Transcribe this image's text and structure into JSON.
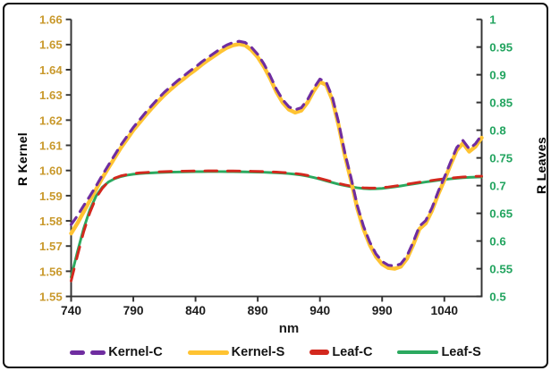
{
  "frame": {
    "background": "#ffffff",
    "border_color": "#0d0d0d"
  },
  "chart_data": {
    "type": "line",
    "title": "",
    "xlabel": "nm",
    "grid": false,
    "legend_position": "bottom",
    "x_range": [
      740,
      1070
    ],
    "x_axis": {
      "label": "nm",
      "color": "#1c1c1c",
      "tick_values": [
        740,
        790,
        840,
        890,
        940,
        990,
        1040
      ],
      "tick_labels": [
        "740",
        "790",
        "840",
        "890",
        "940",
        "990",
        "1040"
      ]
    },
    "left_axis": {
      "label": "R Kernel",
      "color": "#c9992c",
      "range": [
        1.55,
        1.66
      ],
      "tick_values": [
        1.66,
        1.65,
        1.64,
        1.63,
        1.62,
        1.61,
        1.6,
        1.59,
        1.58,
        1.57,
        1.56,
        1.55
      ],
      "tick_labels": [
        "1.66",
        "1.65",
        "1.64",
        "1.63",
        "1.62",
        "1.61",
        "1.60",
        "1.59",
        "1.58",
        "1.57",
        "1.56",
        "1.55"
      ]
    },
    "right_axis": {
      "label": "R Leaves",
      "color": "#22a45f",
      "range": [
        0.5,
        1.0
      ],
      "tick_values": [
        1.0,
        0.95,
        0.9,
        0.85,
        0.8,
        0.75,
        0.7,
        0.65,
        0.6,
        0.55,
        0.5
      ],
      "tick_labels": [
        "1",
        "0.95",
        "0.9",
        "0.85",
        "0.8",
        "0.75",
        "0.7",
        "0.65",
        "0.6",
        "0.55",
        "0.5"
      ]
    },
    "x": [
      740,
      745,
      750,
      755,
      760,
      765,
      770,
      775,
      780,
      785,
      790,
      795,
      800,
      805,
      810,
      815,
      820,
      825,
      830,
      835,
      840,
      845,
      850,
      855,
      860,
      865,
      870,
      875,
      880,
      885,
      890,
      895,
      900,
      905,
      910,
      915,
      920,
      925,
      930,
      935,
      940,
      945,
      950,
      955,
      960,
      965,
      970,
      975,
      980,
      985,
      990,
      995,
      1000,
      1005,
      1010,
      1015,
      1020,
      1025,
      1030,
      1035,
      1040,
      1045,
      1050,
      1055,
      1060,
      1065,
      1070
    ],
    "series": [
      {
        "name": "Kernel-C",
        "axis": "left",
        "color": "#6f2da0",
        "style": "dashed",
        "values": [
          1.5785,
          1.582,
          1.586,
          1.5898,
          1.5938,
          1.5981,
          1.6021,
          1.6061,
          1.6101,
          1.6136,
          1.6171,
          1.6201,
          1.6231,
          1.6259,
          1.6286,
          1.6311,
          1.6333,
          1.6354,
          1.6373,
          1.6393,
          1.6411,
          1.6431,
          1.6449,
          1.6466,
          1.6483,
          1.6498,
          1.6508,
          1.6513,
          1.6508,
          1.6489,
          1.6461,
          1.6423,
          1.6376,
          1.6323,
          1.6281,
          1.6253,
          1.6241,
          1.6249,
          1.6281,
          1.6326,
          1.6363,
          1.6351,
          1.6291,
          1.6191,
          1.6071,
          1.5971,
          1.5861,
          1.5779,
          1.5716,
          1.5669,
          1.5639,
          1.5624,
          1.5621,
          1.5629,
          1.5661,
          1.5716,
          1.5779,
          1.5801,
          1.5851,
          1.5916,
          1.5973,
          1.6033,
          1.6091,
          1.6119,
          1.6086,
          1.6106,
          1.6141
        ]
      },
      {
        "name": "Kernel-S",
        "axis": "left",
        "color": "#ffc332",
        "style": "solid",
        "values": [
          1.575,
          1.579,
          1.5835,
          1.588,
          1.5925,
          1.597,
          1.601,
          1.605,
          1.609,
          1.6125,
          1.616,
          1.619,
          1.622,
          1.6248,
          1.6275,
          1.63,
          1.6322,
          1.6343,
          1.6362,
          1.6382,
          1.64,
          1.642,
          1.6438,
          1.6455,
          1.6472,
          1.6487,
          1.6497,
          1.6502,
          1.6497,
          1.6478,
          1.645,
          1.6412,
          1.6365,
          1.6312,
          1.627,
          1.6242,
          1.623,
          1.6238,
          1.627,
          1.6315,
          1.6352,
          1.634,
          1.628,
          1.618,
          1.606,
          1.596,
          1.585,
          1.5768,
          1.5705,
          1.5658,
          1.5628,
          1.5613,
          1.561,
          1.5618,
          1.565,
          1.5705,
          1.5768,
          1.579,
          1.584,
          1.5905,
          1.5962,
          1.6022,
          1.608,
          1.6108,
          1.6075,
          1.6095,
          1.613
        ]
      },
      {
        "name": "Leaf-C",
        "axis": "right",
        "color": "#d3281e",
        "style": "dashed",
        "values": [
          0.528,
          0.573,
          0.616,
          0.651,
          0.678,
          0.695,
          0.707,
          0.7135,
          0.7175,
          0.72,
          0.7218,
          0.7229,
          0.7237,
          0.7243,
          0.7248,
          0.7252,
          0.7256,
          0.7259,
          0.7261,
          0.7263,
          0.7264,
          0.7265,
          0.7266,
          0.7266,
          0.7266,
          0.7265,
          0.7264,
          0.7263,
          0.7261,
          0.7259,
          0.7256,
          0.7253,
          0.7249,
          0.7244,
          0.7238,
          0.723,
          0.7219,
          0.7204,
          0.7184,
          0.7159,
          0.713,
          0.7099,
          0.7068,
          0.7039,
          0.7013,
          0.6991,
          0.6973,
          0.6961,
          0.6955,
          0.6956,
          0.6963,
          0.6975,
          0.699,
          0.7007,
          0.7025,
          0.7043,
          0.7061,
          0.7078,
          0.7094,
          0.7109,
          0.7123,
          0.7135,
          0.7146,
          0.7155,
          0.7162,
          0.7167,
          0.717
        ]
      },
      {
        "name": "Leaf-S",
        "axis": "right",
        "color": "#2ba95f",
        "style": "solid",
        "values": [
          0.535,
          0.58,
          0.622,
          0.656,
          0.681,
          0.697,
          0.7065,
          0.7125,
          0.7163,
          0.7188,
          0.7205,
          0.7216,
          0.7224,
          0.723,
          0.7235,
          0.7239,
          0.7243,
          0.7246,
          0.7248,
          0.725,
          0.7251,
          0.7252,
          0.7253,
          0.7253,
          0.7253,
          0.7252,
          0.7251,
          0.725,
          0.7248,
          0.7246,
          0.7243,
          0.724,
          0.7236,
          0.7231,
          0.7225,
          0.7217,
          0.7206,
          0.7191,
          0.7171,
          0.7146,
          0.7117,
          0.7086,
          0.7055,
          0.7026,
          0.7,
          0.6978,
          0.696,
          0.6948,
          0.6942,
          0.6943,
          0.695,
          0.6962,
          0.6977,
          0.6994,
          0.7012,
          0.703,
          0.7048,
          0.7065,
          0.7081,
          0.7096,
          0.711,
          0.7122,
          0.7133,
          0.7142,
          0.7149,
          0.7154,
          0.7157
        ]
      }
    ],
    "legend": [
      {
        "label": "Kernel-C",
        "color": "#6f2da0",
        "swatch": "dash-pair"
      },
      {
        "label": "Kernel-S",
        "color": "#ffc332",
        "swatch": "solid"
      },
      {
        "label": "Leaf-C",
        "color": "#d3281e",
        "swatch": "dash-single"
      },
      {
        "label": "Leaf-S",
        "color": "#2ba95f",
        "swatch": "solid-thin"
      }
    ]
  }
}
